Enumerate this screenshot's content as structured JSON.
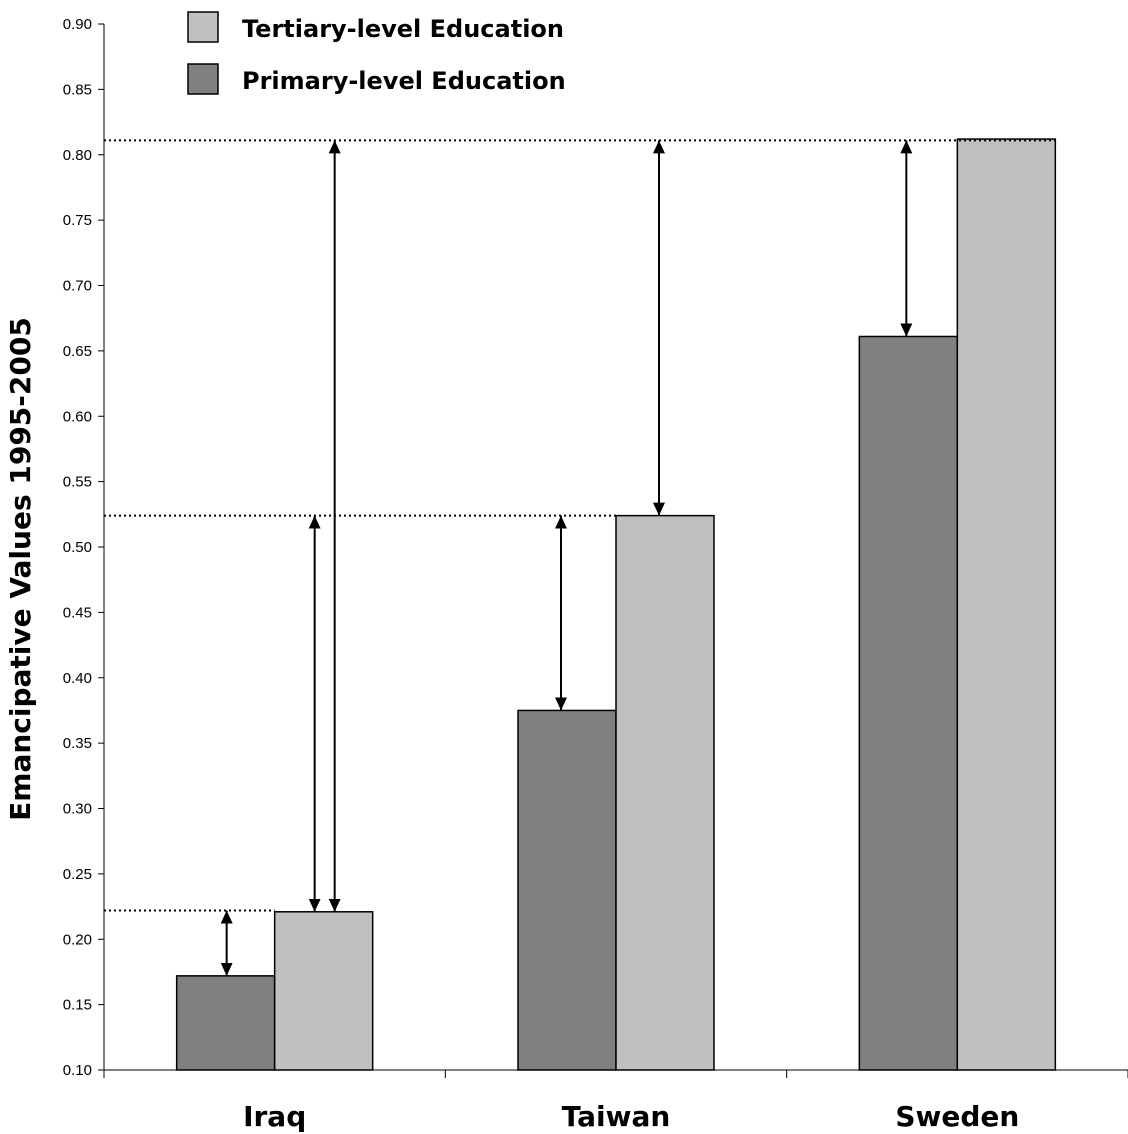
{
  "chart_data": {
    "type": "bar",
    "title": "",
    "xlabel": "",
    "ylabel": "Emancipative Values 1995-2005",
    "categories": [
      "Iraq",
      "Taiwan",
      "Sweden"
    ],
    "ylim": [
      0.1,
      0.9
    ],
    "yticks": [
      "0.10",
      "0.15",
      "0.20",
      "0.25",
      "0.30",
      "0.35",
      "0.40",
      "0.45",
      "0.50",
      "0.55",
      "0.60",
      "0.65",
      "0.70",
      "0.75",
      "0.80",
      "0.85",
      "0.90"
    ],
    "grid": false,
    "legend_position": "top-left",
    "series": [
      {
        "name": "Primary-level Education",
        "values": [
          0.172,
          0.375,
          0.661
        ],
        "color": "#808080"
      },
      {
        "name": "Tertiary-level Education",
        "values": [
          0.221,
          0.524,
          0.812
        ],
        "color": "#c0c0c0"
      }
    ],
    "legend_order": [
      "Tertiary-level Education",
      "Primary-level Education"
    ],
    "annotations": {
      "reference_lines": [
        0.222,
        0.524,
        0.811
      ],
      "gap_arrows": [
        {
          "category": "Iraq",
          "from": 0.172,
          "to": 0.222
        },
        {
          "category": "Iraq",
          "from": 0.221,
          "to": 0.524
        },
        {
          "category": "Iraq",
          "from": 0.221,
          "to": 0.811
        },
        {
          "category": "Taiwan",
          "from": 0.375,
          "to": 0.524
        },
        {
          "category": "Taiwan",
          "from": 0.524,
          "to": 0.811
        },
        {
          "category": "Sweden",
          "from": 0.661,
          "to": 0.811
        }
      ]
    }
  }
}
